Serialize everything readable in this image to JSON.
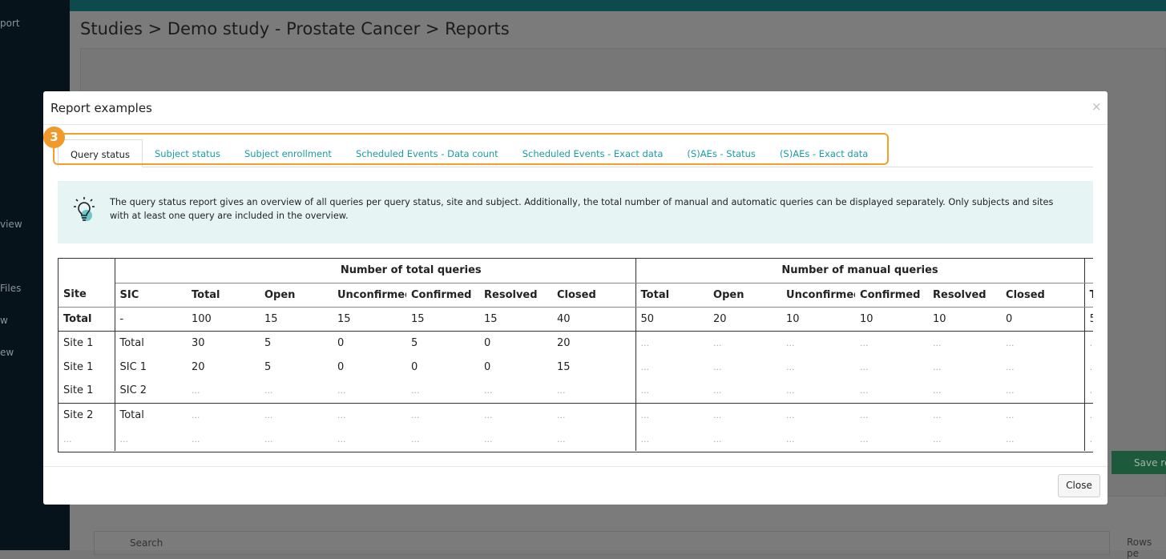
{
  "sidebar": {
    "items": [
      "port",
      "view",
      "Files",
      "w",
      "ew"
    ]
  },
  "header": {
    "breadcrumb": "Studies > Demo study - Prostate Cancer > Reports"
  },
  "background": {
    "save_button": "Save re",
    "search_placeholder": "Search",
    "rows_label": "Rows pe"
  },
  "modal": {
    "title": "Report examples",
    "close_icon": "×",
    "step_badge": "3",
    "tabs": [
      "Query status",
      "Subject status",
      "Subject enrollment",
      "Scheduled Events - Data count",
      "Scheduled Events - Exact data",
      "(S)AEs - Status",
      "(S)AEs - Exact data"
    ],
    "info_text": "The query status report gives an overview of all queries per query status, site and subject. Additionally, the total number of manual and automatic queries can be displayed separately. Only subjects and sites with at least one query are included in the overview.",
    "table": {
      "group_headers": [
        "Number of total queries",
        "Number of manual queries"
      ],
      "headers": [
        "Site",
        "SIC",
        "Total",
        "Open",
        "Unconfirmed",
        "Confirmed",
        "Resolved",
        "Closed",
        "Total",
        "Open",
        "Unconfirmed",
        "Confirmed",
        "Resolved",
        "Closed",
        "T"
      ],
      "rows": [
        [
          "Total",
          "-",
          "100",
          "15",
          "15",
          "15",
          "15",
          "40",
          "50",
          "20",
          "10",
          "10",
          "10",
          "0",
          "5"
        ],
        [
          "Site 1",
          "Total",
          "30",
          "5",
          "0",
          "5",
          "0",
          "20",
          "...",
          "...",
          "...",
          "...",
          "...",
          "...",
          ".."
        ],
        [
          "Site 1",
          "SIC 1",
          "20",
          "5",
          "0",
          "0",
          "0",
          "15",
          "...",
          "...",
          "...",
          "...",
          "...",
          "...",
          ".."
        ],
        [
          "Site 1",
          "SIC 2",
          "...",
          "...",
          "...",
          "...",
          "...",
          "...",
          "...",
          "...",
          "...",
          "...",
          "...",
          "...",
          ".."
        ],
        [
          "Site 2",
          "Total",
          "...",
          "...",
          "...",
          "...",
          "...",
          "...",
          "...",
          "...",
          "...",
          "...",
          "...",
          "...",
          ".."
        ],
        [
          "...",
          "...",
          "...",
          "...",
          "...",
          "...",
          "...",
          "...",
          "...",
          "...",
          "...",
          "...",
          "...",
          "...",
          ".."
        ]
      ]
    },
    "close_button": "Close"
  }
}
